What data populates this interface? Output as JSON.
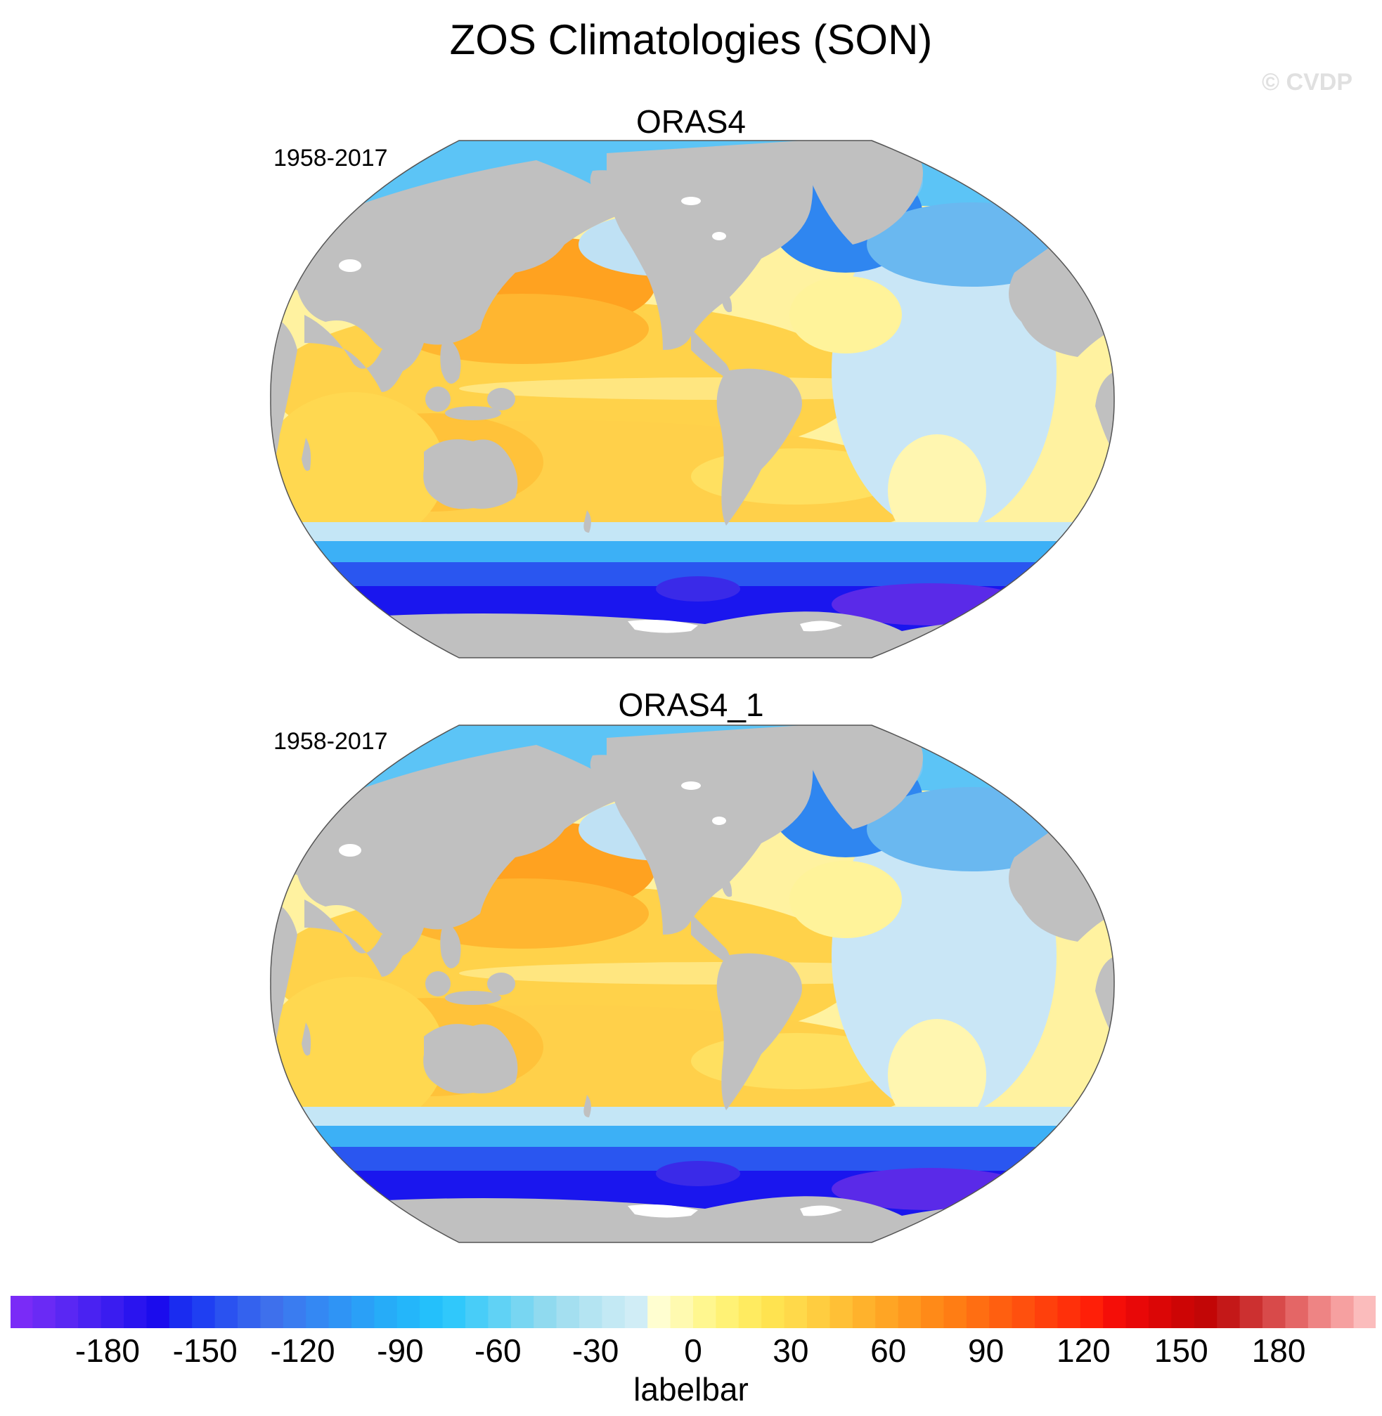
{
  "figure": {
    "title": "ZOS Climatologies (SON)",
    "watermark": "© CVDP"
  },
  "panels": [
    {
      "title": "ORAS4",
      "period": "1958-2017"
    },
    {
      "title": "ORAS4_1",
      "period": "1958-2017"
    }
  ],
  "labelbar": {
    "title": "labelbar",
    "ticks": [
      "-180",
      "-150",
      "-120",
      "-90",
      "-60",
      "-30",
      "0",
      "30",
      "60",
      "90",
      "120",
      "150",
      "180"
    ],
    "colors": [
      "#7a2bf7",
      "#6a2af5",
      "#5a27f3",
      "#4a22f2",
      "#3a1cf0",
      "#2a14ef",
      "#1b0ced",
      "#1a2cf0",
      "#1f3ff2",
      "#2a52f0",
      "#3462ee",
      "#3e70ec",
      "#3a7cf0",
      "#3488f3",
      "#2f94f5",
      "#2aa0f7",
      "#26acf8",
      "#24b6fa",
      "#24c0fb",
      "#30c8fb",
      "#48cdf8",
      "#60d2f5",
      "#78d6f2",
      "#90daef",
      "#a4dff0",
      "#b4e4f2",
      "#c3e9f4",
      "#d0edf6",
      "#fffed0",
      "#fffab0",
      "#fff78f",
      "#fff275",
      "#ffeb60",
      "#ffe350",
      "#ffd94a",
      "#ffcd40",
      "#ffc036",
      "#ffb22c",
      "#ffa524",
      "#ff981e",
      "#ff8a18",
      "#ff7d14",
      "#ff6e12",
      "#ff5f10",
      "#ff500e",
      "#ff400c",
      "#ff300a",
      "#ff1f08",
      "#f50e08",
      "#e80808",
      "#db0606",
      "#cd0505",
      "#c20606",
      "#c41818",
      "#cc3030",
      "#d84a4a",
      "#e46666",
      "#ee8484",
      "#f6a0a0",
      "#fbbcbc"
    ]
  }
}
